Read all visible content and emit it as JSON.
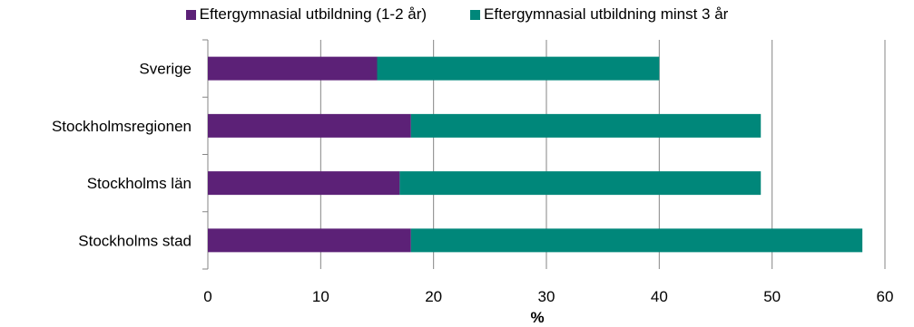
{
  "chart_data": {
    "type": "bar",
    "orientation": "horizontal",
    "stacked": true,
    "categories": [
      "Sverige",
      "Stockholmsregionen",
      "Stockholms län",
      "Stockholms stad"
    ],
    "series": [
      {
        "name": "Eftergymnasial utbildning (1-2 år)",
        "values": [
          15,
          18,
          17,
          18
        ],
        "color": "#5c2177"
      },
      {
        "name": "Eftergymnasial utbildning minst 3 år",
        "values": [
          25,
          31,
          32,
          40
        ],
        "color": "#00877a"
      }
    ],
    "xlim": [
      0,
      60
    ],
    "xticks": [
      0,
      10,
      20,
      30,
      40,
      50,
      60
    ],
    "xlabel": "%",
    "ylabel": "",
    "grid": "vertical",
    "legend_position": "top"
  }
}
